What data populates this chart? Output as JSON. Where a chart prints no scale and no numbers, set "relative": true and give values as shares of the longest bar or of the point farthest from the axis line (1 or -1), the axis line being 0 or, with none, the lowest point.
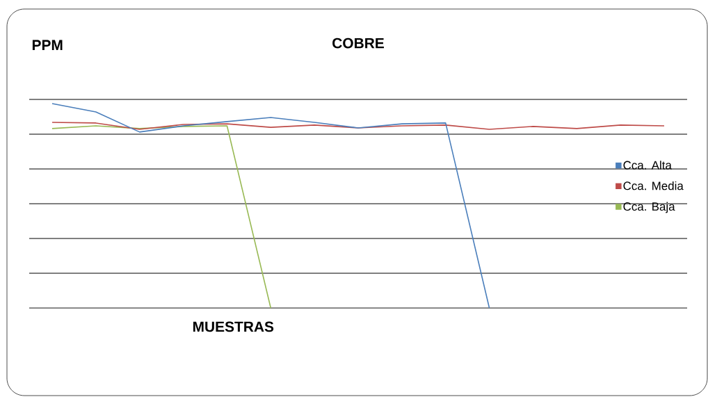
{
  "chart_data": {
    "type": "line",
    "title": "COBRE",
    "ylabel": "PPM",
    "xlabel": "MUESTRAS",
    "relative": true,
    "categories": [
      null,
      null,
      null,
      null,
      null,
      null,
      null,
      null,
      null,
      null,
      null,
      null,
      null,
      null,
      null
    ],
    "series": [
      {
        "name": "Cca. Alta",
        "color": "#4a7ebb",
        "values": [
          1.0,
          0.959,
          0.861,
          0.891,
          0.912,
          0.932,
          0.908,
          0.881,
          0.901,
          0.905,
          0,
          null,
          null,
          null,
          null
        ]
      },
      {
        "name": "Cca. Media",
        "color": "#be4b48",
        "values": [
          0.908,
          0.905,
          0.874,
          0.898,
          0.901,
          0.884,
          0.895,
          0.881,
          0.891,
          0.895,
          0.874,
          0.888,
          0.878,
          0.895,
          0.891
        ]
      },
      {
        "name": "Cca. Baja",
        "color": "#98b954",
        "values": [
          0.878,
          0.891,
          0.878,
          0.888,
          0.891,
          0,
          null,
          null,
          null,
          null,
          null,
          null,
          null,
          null,
          null
        ]
      }
    ],
    "grid": "y",
    "legend": "right",
    "marker": "none",
    "line_style": "solid"
  }
}
